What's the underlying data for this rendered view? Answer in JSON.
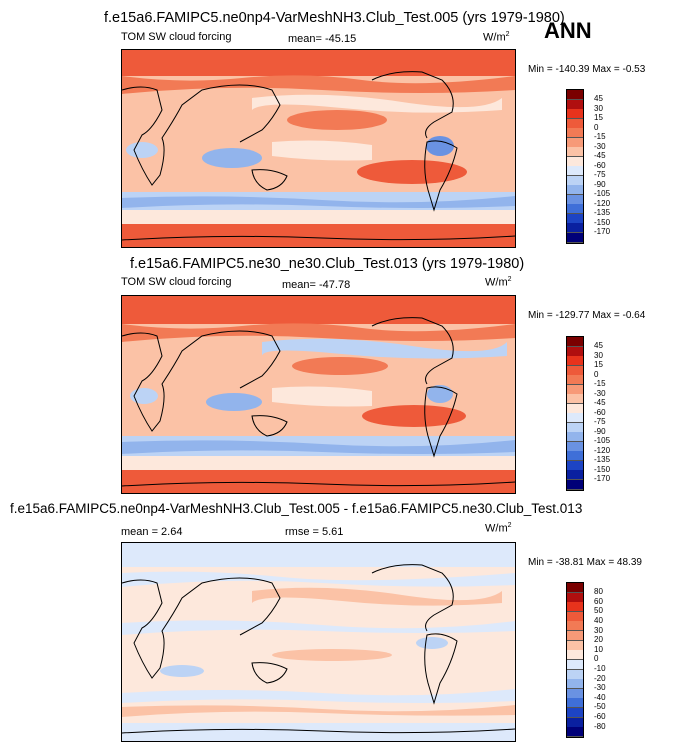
{
  "season": "ANN",
  "panels": [
    {
      "title": "f.e15a6.FAMIPC5.ne0np4-VarMeshNH3.Club_Test.005 (yrs 1979-1980)",
      "left_label": "TOM SW cloud forcing",
      "center_label": "mean= -45.15",
      "units": "W/m",
      "units_sup": "2",
      "minmax": "Min = -140.39 Max =  -0.53"
    },
    {
      "title": "f.e15a6.FAMIPC5.ne30_ne30.Club_Test.013 (yrs 1979-1980)",
      "left_label": "TOM SW cloud forcing",
      "center_label": "mean= -47.78",
      "units": "W/m",
      "units_sup": "2",
      "minmax": "Min = -129.77 Max =  -0.64"
    },
    {
      "title": "f.e15a6.FAMIPC5.ne0np4-VarMeshNH3.Club_Test.005 - f.e15a6.FAMIPC5.ne30.Club_Test.013",
      "left_label": "mean =   2.64",
      "center_label": "rmse =   5.61",
      "units": "W/m",
      "units_sup": "2",
      "minmax": "Min = -38.81 Max = 48.39"
    }
  ],
  "chart_data": [
    {
      "type": "heatmap",
      "name": "map-1",
      "title": "f.e15a6.FAMIPC5.ne0np4-VarMeshNH3.Club_Test.005 (yrs 1979-1980)",
      "variable": "TOM SW cloud forcing",
      "units": "W/m2",
      "mean": -45.15,
      "min": -140.39,
      "max": -0.53,
      "colorbar_levels": [
        "45",
        "30",
        "15",
        "0",
        "-15",
        "-30",
        "-45",
        "-60",
        "-75",
        "-90",
        "-105",
        "-120",
        "-135",
        "-150",
        "-170"
      ]
    },
    {
      "type": "heatmap",
      "name": "map-2",
      "title": "f.e15a6.FAMIPC5.ne30_ne30.Club_Test.013 (yrs 1979-1980)",
      "variable": "TOM SW cloud forcing",
      "units": "W/m2",
      "mean": -47.78,
      "min": -129.77,
      "max": -0.64,
      "colorbar_levels": [
        "45",
        "30",
        "15",
        "0",
        "-15",
        "-30",
        "-45",
        "-60",
        "-75",
        "-90",
        "-105",
        "-120",
        "-135",
        "-150",
        "-170"
      ]
    },
    {
      "type": "heatmap",
      "name": "map-diff",
      "title": "f.e15a6.FAMIPC5.ne0np4-VarMeshNH3.Club_Test.005 - f.e15a6.FAMIPC5.ne30.Club_Test.013",
      "units": "W/m2",
      "mean": 2.64,
      "rmse": 5.61,
      "min": -38.81,
      "max": 48.39,
      "colorbar_levels": [
        "80",
        "60",
        "50",
        "40",
        "30",
        "20",
        "10",
        "0",
        "-10",
        "-20",
        "-30",
        "-40",
        "-50",
        "-60",
        "-80"
      ]
    }
  ],
  "colors": {
    "abs_palette": [
      "#7a0000",
      "#b00f0f",
      "#e8331c",
      "#ee5a3a",
      "#f27a55",
      "#f79a78",
      "#fbc2a6",
      "#fde8dc",
      "#dde9fb",
      "#bcd3f5",
      "#92b4ec",
      "#6a92e2",
      "#3f6fd8",
      "#1d44c4",
      "#0a20a0",
      "#000078"
    ],
    "diff_palette": [
      "#7a0000",
      "#b00f0f",
      "#e8331c",
      "#ee5a3a",
      "#f27a55",
      "#f79a78",
      "#fbc2a6",
      "#fde8dc",
      "#dde9fb",
      "#bcd3f5",
      "#92b4ec",
      "#6a92e2",
      "#3f6fd8",
      "#1d44c4",
      "#0a20a0",
      "#000078"
    ]
  }
}
